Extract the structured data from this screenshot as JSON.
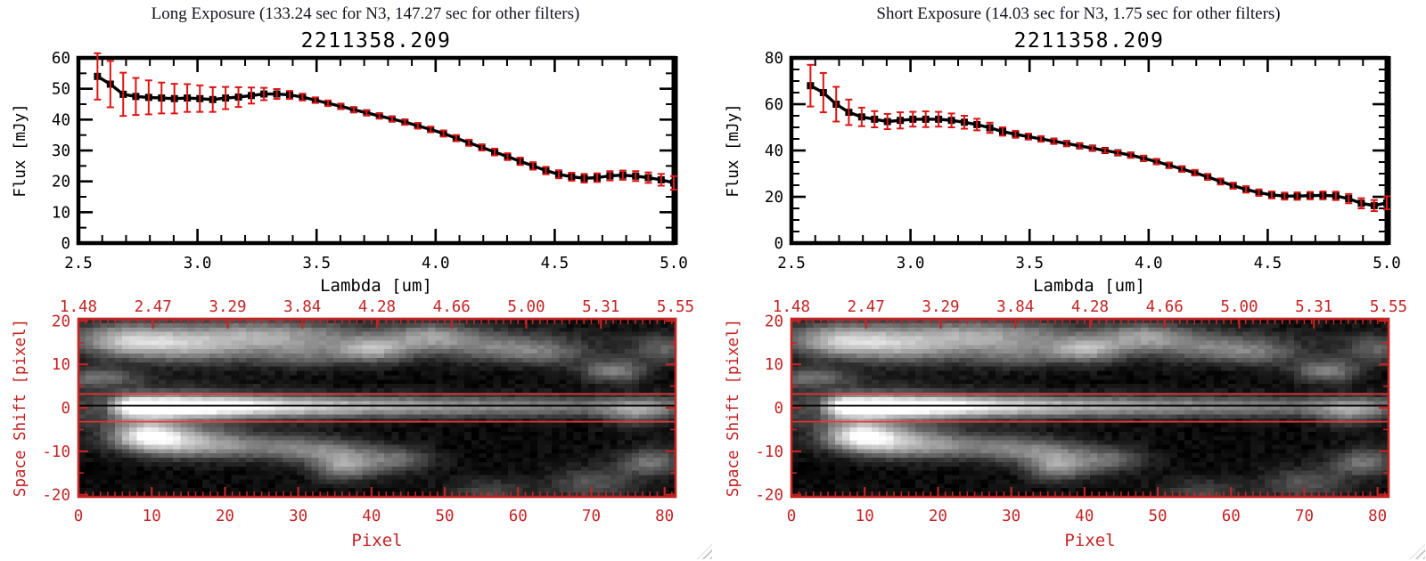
{
  "colors": {
    "axis_red": "#c32424",
    "error_red": "#dd1414",
    "aperture_red": "#f03030",
    "frame_black": "#000000",
    "grip_gray": "#c3c3c3",
    "background": "#ffffff"
  },
  "panels": [
    {
      "id": "long-exposure",
      "header": "Long Exposure (133.24 sec for N3, 147.27 sec for other filters)",
      "title": "2211358.209",
      "spectrum_chart": 0,
      "image_chart": 2
    },
    {
      "id": "short-exposure",
      "header": "Short Exposure (14.03 sec for N3, 1.75 sec for other filters)",
      "title": "2211358.209",
      "spectrum_chart": 1,
      "image_chart": 3
    }
  ],
  "chart_data": [
    {
      "id": "long-exposure-spectrum",
      "type": "line",
      "title": "2211358.209",
      "xlabel": "Lambda [um]",
      "ylabel": "Flux [mJy]",
      "xlim": [
        2.5,
        5.0
      ],
      "ylim": [
        0,
        60
      ],
      "x_major": 0.5,
      "x_minor": 0.1,
      "y_major": 10,
      "y_minor": 5,
      "x_tick_labels": [
        "2.5",
        "3.0",
        "3.5",
        "4.0",
        "4.5",
        "5.0"
      ],
      "y_tick_labels": [
        "0",
        "10",
        "20",
        "30",
        "40",
        "50",
        "60"
      ],
      "marker": "square",
      "line_color": "#000000",
      "error_color": "#dd1414",
      "x": [
        2.58,
        2.634,
        2.688,
        2.741,
        2.795,
        2.849,
        2.903,
        2.957,
        3.01,
        3.064,
        3.118,
        3.172,
        3.226,
        3.279,
        3.333,
        3.387,
        3.441,
        3.495,
        3.548,
        3.602,
        3.656,
        3.71,
        3.764,
        3.817,
        3.871,
        3.925,
        3.979,
        4.033,
        4.086,
        4.14,
        4.194,
        4.248,
        4.302,
        4.355,
        4.409,
        4.463,
        4.517,
        4.571,
        4.624,
        4.678,
        4.732,
        4.786,
        4.84,
        4.893,
        4.947,
        5.0
      ],
      "y": [
        54.0,
        51.5,
        48.2,
        47.5,
        47.2,
        47.0,
        46.8,
        47.0,
        46.8,
        46.5,
        47.0,
        47.3,
        47.8,
        48.3,
        48.3,
        48.0,
        47.3,
        46.3,
        45.3,
        44.3,
        43.2,
        42.2,
        41.2,
        40.2,
        39.2,
        38.0,
        36.8,
        35.5,
        34.0,
        32.5,
        31.0,
        29.5,
        28.0,
        26.5,
        25.0,
        23.5,
        22.3,
        21.5,
        21.0,
        21.2,
        21.8,
        22.0,
        21.7,
        21.2,
        20.5,
        19.5
      ],
      "yerr": [
        7.5,
        7.5,
        7.0,
        6.0,
        5.5,
        5.0,
        4.8,
        4.5,
        4.3,
        4.0,
        3.6,
        3.2,
        2.6,
        2.0,
        1.6,
        1.3,
        1.1,
        0.9,
        0.9,
        0.8,
        0.8,
        0.8,
        0.8,
        0.8,
        0.8,
        0.9,
        0.9,
        1.0,
        1.0,
        1.0,
        1.0,
        1.1,
        1.1,
        1.2,
        1.2,
        1.2,
        1.3,
        1.3,
        1.4,
        1.4,
        1.5,
        1.5,
        1.6,
        1.7,
        1.9,
        2.2
      ]
    },
    {
      "id": "short-exposure-spectrum",
      "type": "line",
      "title": "2211358.209",
      "xlabel": "Lambda [um]",
      "ylabel": "Flux [mJy]",
      "xlim": [
        2.5,
        5.0
      ],
      "ylim": [
        0,
        80
      ],
      "x_major": 0.5,
      "x_minor": 0.1,
      "y_major": 20,
      "y_minor": 5,
      "x_tick_labels": [
        "2.5",
        "3.0",
        "3.5",
        "4.0",
        "4.5",
        "5.0"
      ],
      "y_tick_labels": [
        "0",
        "20",
        "40",
        "60",
        "80"
      ],
      "marker": "square",
      "line_color": "#000000",
      "error_color": "#dd1414",
      "x": [
        2.58,
        2.634,
        2.688,
        2.741,
        2.795,
        2.849,
        2.903,
        2.957,
        3.01,
        3.064,
        3.118,
        3.172,
        3.226,
        3.279,
        3.333,
        3.387,
        3.441,
        3.495,
        3.548,
        3.602,
        3.656,
        3.71,
        3.764,
        3.817,
        3.871,
        3.925,
        3.979,
        4.033,
        4.086,
        4.14,
        4.194,
        4.248,
        4.302,
        4.355,
        4.409,
        4.463,
        4.517,
        4.571,
        4.624,
        4.678,
        4.732,
        4.786,
        4.84,
        4.893,
        4.947,
        5.0
      ],
      "y": [
        68.0,
        65.0,
        60.0,
        56.5,
        54.5,
        53.5,
        52.5,
        53.0,
        53.5,
        53.5,
        53.5,
        53.0,
        52.2,
        51.2,
        49.8,
        48.2,
        47.0,
        46.0,
        45.0,
        44.0,
        43.0,
        42.0,
        41.0,
        40.0,
        39.0,
        38.0,
        36.6,
        35.2,
        33.6,
        32.0,
        30.4,
        28.6,
        26.6,
        24.8,
        23.2,
        21.8,
        20.8,
        20.3,
        20.3,
        20.5,
        20.6,
        20.4,
        19.2,
        17.2,
        16.2,
        17.4
      ],
      "yerr": [
        9.0,
        8.5,
        7.5,
        5.5,
        4.0,
        3.5,
        3.3,
        3.5,
        3.2,
        3.4,
        3.2,
        3.0,
        2.8,
        2.5,
        2.2,
        1.8,
        1.5,
        1.3,
        1.2,
        1.1,
        1.0,
        1.0,
        1.0,
        1.0,
        1.0,
        1.1,
        1.1,
        1.1,
        1.2,
        1.2,
        1.2,
        1.3,
        1.3,
        1.3,
        1.4,
        1.4,
        1.5,
        1.5,
        1.6,
        1.6,
        1.7,
        1.8,
        2.0,
        2.2,
        2.4,
        2.8
      ]
    },
    {
      "id": "long-exposure-2d-image",
      "type": "heatmap",
      "xlabel": "Pixel",
      "ylabel": "Space Shift [pixel]",
      "xlim": [
        0,
        81.5
      ],
      "ylim": [
        -20.5,
        20.5
      ],
      "top_tick_labels": [
        "1.48",
        "2.47",
        "3.29",
        "3.84",
        "4.28",
        "4.66",
        "5.00",
        "5.31",
        "5.55"
      ],
      "left_tick_labels": [
        "20",
        "10",
        "0",
        "-10",
        "-20"
      ],
      "bottom_tick_labels": [
        "0",
        "10",
        "20",
        "30",
        "40",
        "50",
        "60",
        "70",
        "80"
      ],
      "overlay_aperture_y": 3.2,
      "overlay_center_line_y": 0.5,
      "features_ref": "image_features"
    },
    {
      "id": "short-exposure-2d-image",
      "type": "heatmap",
      "xlabel": "Pixel",
      "ylabel": "Space Shift [pixel]",
      "xlim": [
        0,
        81.5
      ],
      "ylim": [
        -20.5,
        20.5
      ],
      "top_tick_labels": [
        "1.48",
        "2.47",
        "3.29",
        "3.84",
        "4.28",
        "4.66",
        "5.00",
        "5.31",
        "5.55"
      ],
      "left_tick_labels": [
        "20",
        "10",
        "0",
        "-10",
        "-20"
      ],
      "bottom_tick_labels": [
        "0",
        "10",
        "20",
        "30",
        "40",
        "50",
        "60",
        "70",
        "80"
      ],
      "overlay_aperture_y": 3.2,
      "overlay_center_line_y": 0.5,
      "features_ref": "image_features"
    }
  ],
  "image_features": {
    "streak": {
      "y_center": 0.3,
      "sigma": 1.7,
      "x_start": 3,
      "x_peak_start": 7,
      "x_peak_end": 13,
      "decay": 60,
      "min_amp": 0.3,
      "halo_amp": 0.3,
      "halo_sigma": 3.4
    },
    "blobs": [
      [
        0.55,
        6,
        15.5,
        5,
        2.6
      ],
      [
        0.45,
        15,
        14,
        6,
        2.6
      ],
      [
        0.3,
        27,
        16.5,
        7,
        2.4
      ],
      [
        0.25,
        30,
        12,
        5,
        2.0
      ],
      [
        0.5,
        40,
        13.5,
        3.5,
        2.0
      ],
      [
        0.42,
        48,
        16.5,
        4,
        2.2
      ],
      [
        0.3,
        57,
        14,
        5,
        2.2
      ],
      [
        0.25,
        64,
        12.5,
        4,
        2.0
      ],
      [
        0.45,
        73,
        8.5,
        3,
        1.8
      ],
      [
        0.3,
        80,
        13.5,
        3,
        2.2
      ],
      [
        0.35,
        2,
        7,
        4,
        1.6
      ],
      [
        0.22,
        20,
        17.5,
        12,
        2.6
      ],
      [
        0.14,
        45,
        15,
        22,
        3.0
      ],
      [
        0.8,
        9,
        -6.5,
        3.5,
        2.3
      ],
      [
        0.5,
        15,
        -8,
        5,
        2.4
      ],
      [
        0.32,
        25,
        -9,
        7,
        2.0
      ],
      [
        0.28,
        33,
        -10,
        5,
        2.0
      ],
      [
        0.5,
        36,
        -13.5,
        3,
        2.2
      ],
      [
        0.35,
        43,
        -12,
        3.5,
        2.0
      ],
      [
        0.28,
        70,
        -17.5,
        4,
        2.6
      ],
      [
        0.4,
        78,
        -12.5,
        3,
        2.2
      ],
      [
        0.33,
        76,
        -1,
        3,
        2.2
      ],
      [
        0.22,
        56,
        -19.5,
        4,
        2.2
      ]
    ]
  }
}
